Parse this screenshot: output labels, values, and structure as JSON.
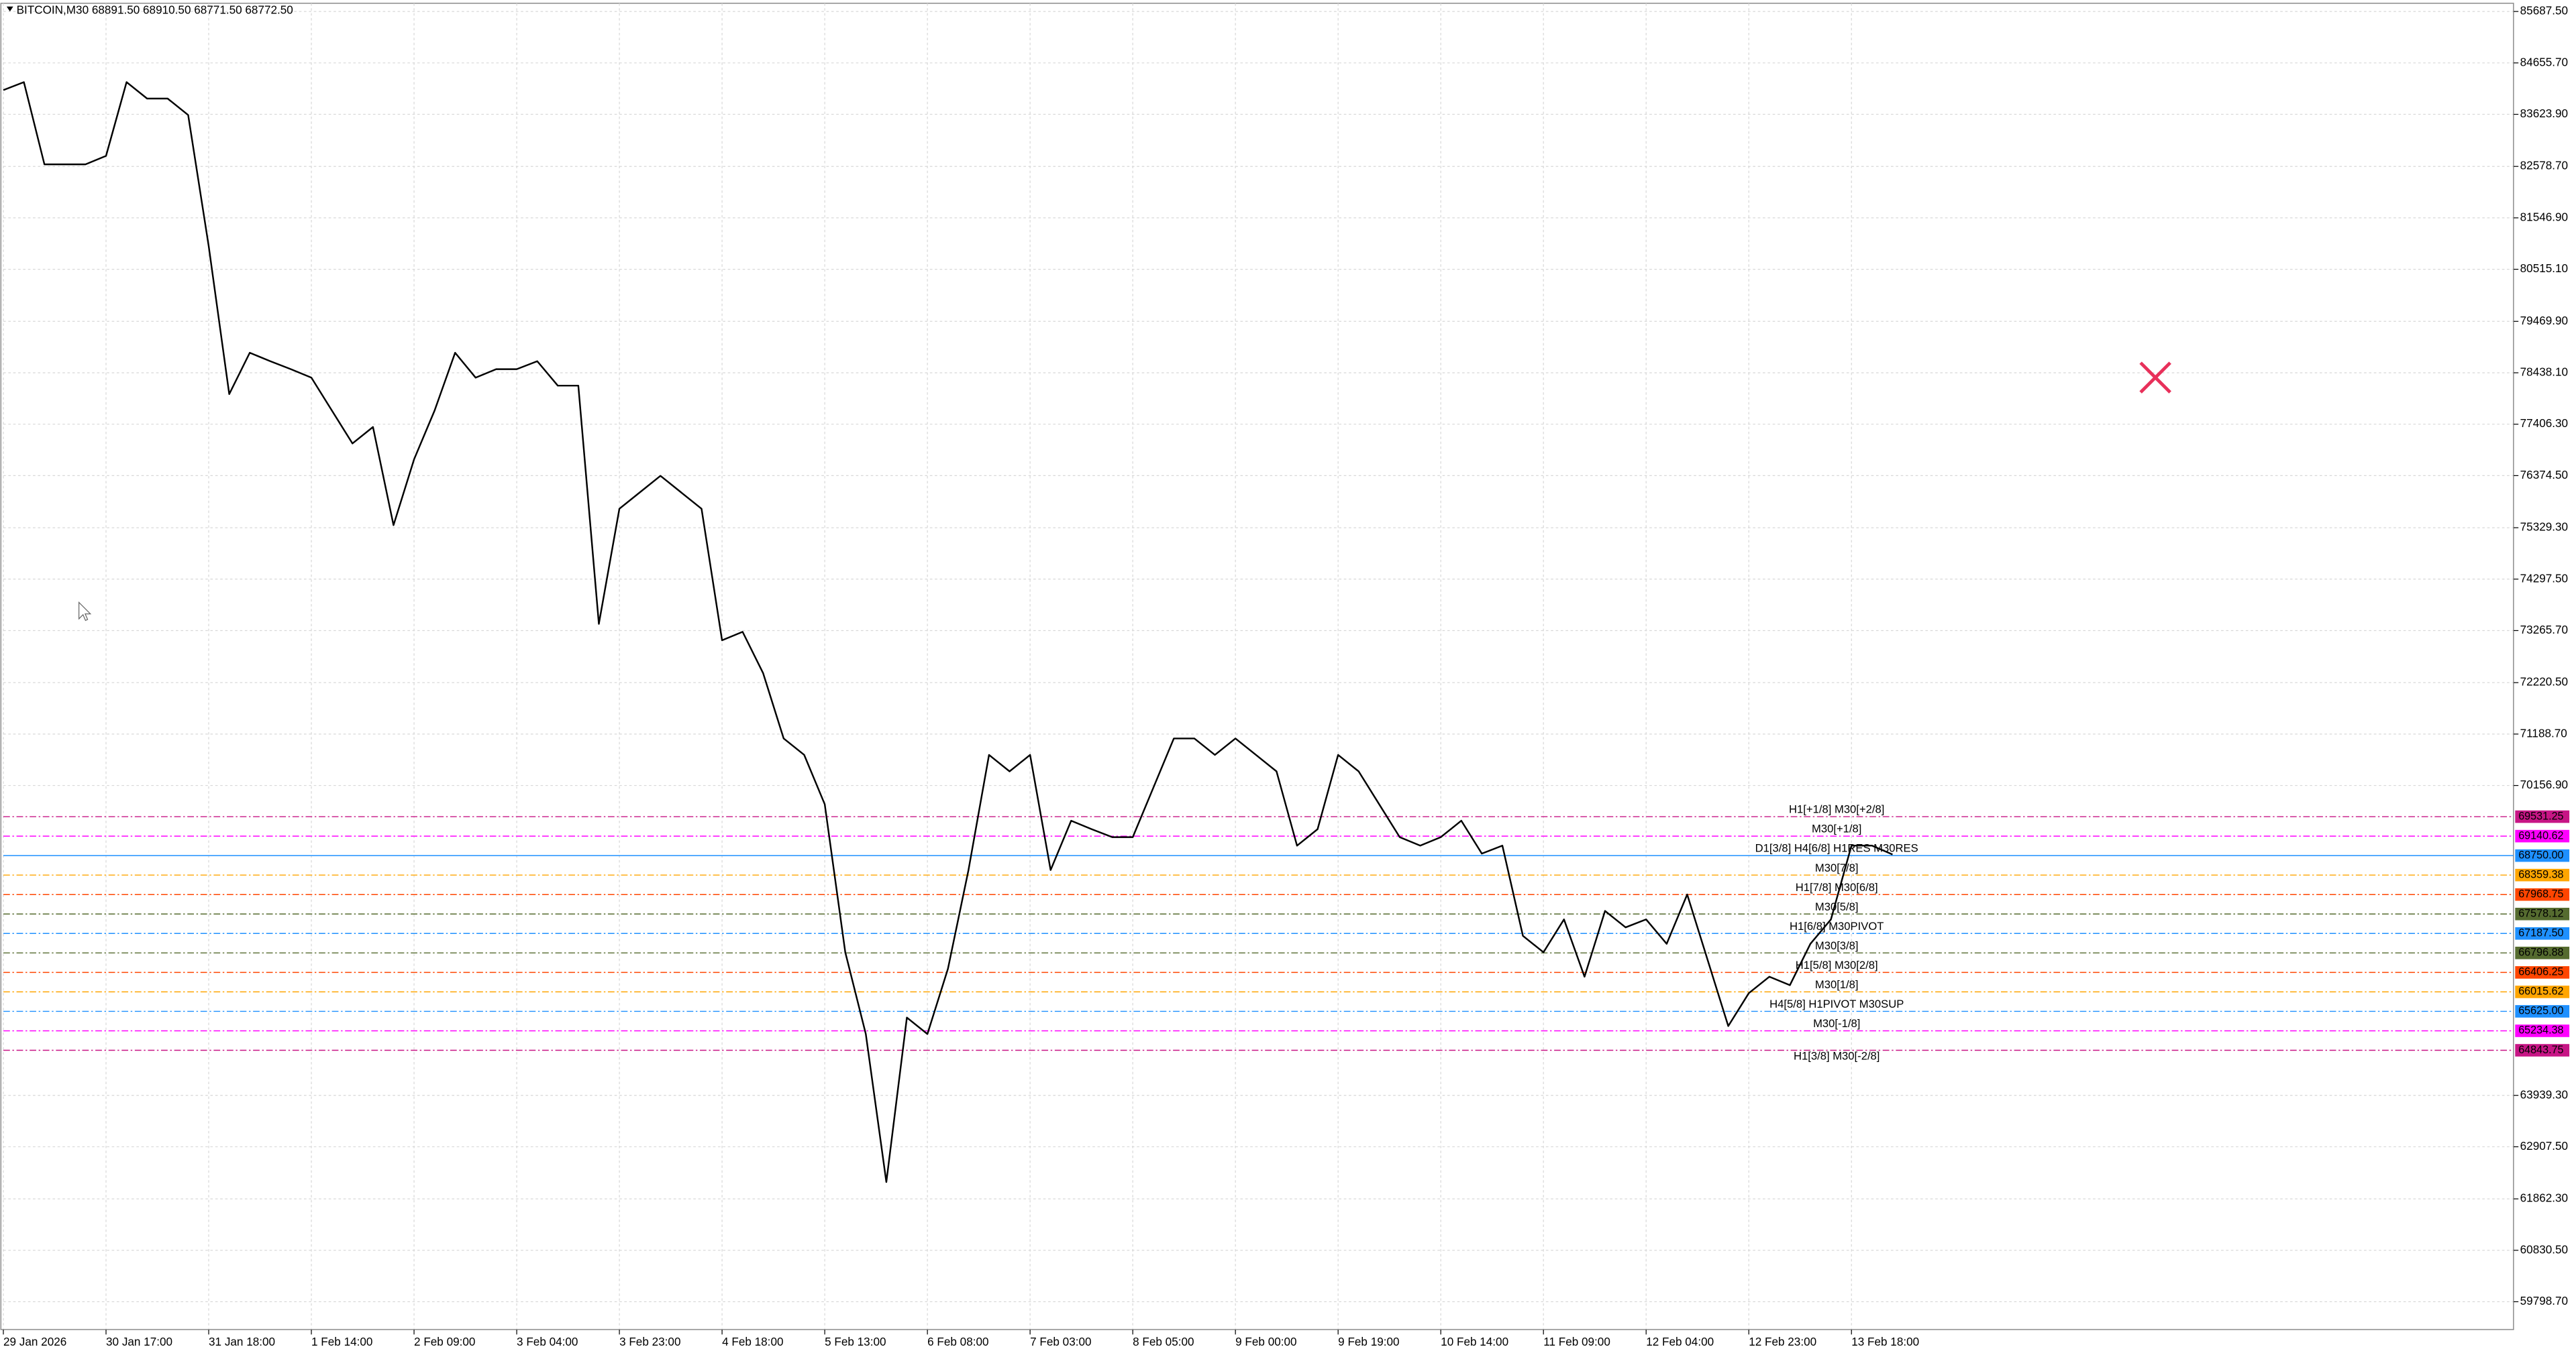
{
  "chart_data": {
    "type": "line",
    "title": "BITCOIN,M30  68891.50 68910.50 68771.50 68772.50",
    "color": "#000000",
    "grid": true,
    "categories": [
      "29 Jan 2026",
      null,
      null,
      null,
      null,
      "30 Jan 17:00",
      null,
      null,
      null,
      null,
      "31 Jan 18:00",
      null,
      null,
      null,
      null,
      "1 Feb 14:00",
      null,
      null,
      null,
      null,
      "2 Feb 09:00",
      null,
      null,
      null,
      null,
      "3 Feb 04:00",
      null,
      null,
      null,
      null,
      "3 Feb 23:00",
      null,
      null,
      null,
      null,
      "4 Feb 18:00",
      null,
      null,
      null,
      null,
      "5 Feb 13:00",
      null,
      null,
      null,
      null,
      "6 Feb 08:00",
      null,
      null,
      null,
      null,
      "7 Feb 03:00",
      null,
      null,
      null,
      null,
      "8 Feb 05:00",
      null,
      null,
      null,
      null,
      "9 Feb 00:00",
      null,
      null,
      null,
      null,
      "9 Feb 19:00",
      null,
      null,
      null,
      null,
      "10 Feb 14:00",
      null,
      null,
      null,
      null,
      "11 Feb 09:00",
      null,
      null,
      null,
      null,
      "12 Feb 04:00",
      null,
      null,
      null,
      null,
      "12 Feb 23:00",
      null,
      null,
      null,
      null,
      "13 Feb 18:00",
      null,
      null
    ],
    "values": [
      84110,
      84270,
      82620,
      82620,
      82620,
      82790,
      84270,
      83940,
      83940,
      83610,
      80980,
      78010,
      78840,
      78670,
      78510,
      78340,
      77680,
      77020,
      77350,
      75380,
      76700,
      77680,
      78840,
      78340,
      78510,
      78510,
      78670,
      78180,
      78180,
      73400,
      75710,
      76040,
      76370,
      76040,
      75710,
      73070,
      73240,
      72410,
      71100,
      70770,
      69780,
      66810,
      65170,
      62200,
      65500,
      65170,
      66480,
      68460,
      70770,
      70440,
      70770,
      68460,
      69450,
      69280,
      69120,
      69120,
      70110,
      71100,
      71100,
      70770,
      71100,
      70770,
      70440,
      68950,
      69280,
      70770,
      70440,
      69780,
      69120,
      68950,
      69120,
      69450,
      68790,
      68950,
      67140,
      66810,
      67470,
      66320,
      67640,
      67310,
      67470,
      66980,
      67970,
      66650,
      65330,
      65990,
      66320,
      66150,
      66980,
      67470,
      68950,
      68950,
      68772.5
    ],
    "ylim": [
      59240,
      85852
    ],
    "yticks": [
      {
        "value": 85687.5,
        "label": "85687.50"
      },
      {
        "value": 84655.7,
        "label": "84655.70"
      },
      {
        "value": 83623.9,
        "label": "83623.90"
      },
      {
        "value": 82578.7,
        "label": "82578.70"
      },
      {
        "value": 81546.9,
        "label": "81546.90"
      },
      {
        "value": 80515.1,
        "label": "80515.10"
      },
      {
        "value": 79469.9,
        "label": "79469.90"
      },
      {
        "value": 78438.1,
        "label": "78438.10"
      },
      {
        "value": 77406.3,
        "label": "77406.30"
      },
      {
        "value": 76374.5,
        "label": "76374.50"
      },
      {
        "value": 75329.3,
        "label": "75329.30"
      },
      {
        "value": 74297.5,
        "label": "74297.50"
      },
      {
        "value": 73265.7,
        "label": "73265.70"
      },
      {
        "value": 72220.5,
        "label": "72220.50"
      },
      {
        "value": 71188.7,
        "label": "71188.70"
      },
      {
        "value": 70156.9,
        "label": "70156.90"
      },
      {
        "value": 63939.3,
        "label": "63939.30"
      },
      {
        "value": 62907.5,
        "label": "62907.50"
      },
      {
        "value": 61862.3,
        "label": "61862.30"
      },
      {
        "value": 60830.5,
        "label": "60830.50"
      },
      {
        "value": 59798.7,
        "label": "59798.70"
      }
    ],
    "levels": [
      {
        "value": 69531.25,
        "label": "69531.25",
        "text": "H1[+1/8] M30[+2/8]",
        "color": "#c71585"
      },
      {
        "value": 69140.62,
        "label": "69140.62",
        "text": "M30[+1/8]",
        "color": "#ff00ff"
      },
      {
        "value": 68750,
        "label": "68750.00",
        "text": "D1[3/8] H4[6/8] H1RES M30RES",
        "color": "#1e90ff"
      },
      {
        "value": 68359.38,
        "label": "68359.38",
        "text": "M30[7/8]",
        "color": "#ffa500"
      },
      {
        "value": 67968.75,
        "label": "67968.75",
        "text": "H1[7/8] M30[6/8]",
        "color": "#ff4500"
      },
      {
        "value": 67578.12,
        "label": "67578.12",
        "text": "M30[5/8]",
        "color": "#556b2f"
      },
      {
        "value": 67187.5,
        "label": "67187.50",
        "text": "H1[6/8] M30PIVOT",
        "color": "#1e90ff"
      },
      {
        "value": 66796.88,
        "label": "66796.88",
        "text": "M30[3/8]",
        "color": "#556b2f"
      },
      {
        "value": 66406.25,
        "label": "66406.25",
        "text": "H1[5/8] M30[2/8]",
        "color": "#ff4500"
      },
      {
        "value": 66015.62,
        "label": "66015.62",
        "text": "M30[1/8]",
        "color": "#ffa500"
      },
      {
        "value": 65625,
        "label": "65625.00",
        "text": "H4[5/8] H1PIVOT M30SUP",
        "color": "#1e90ff"
      },
      {
        "value": 65234.38,
        "label": "65234.38",
        "text": "M30[-1/8]",
        "color": "#ff00ff"
      },
      {
        "value": 64843.75,
        "label": "64843.75",
        "text": "H1[3/8] M30[-2/8]",
        "color": "#c71585"
      }
    ]
  }
}
